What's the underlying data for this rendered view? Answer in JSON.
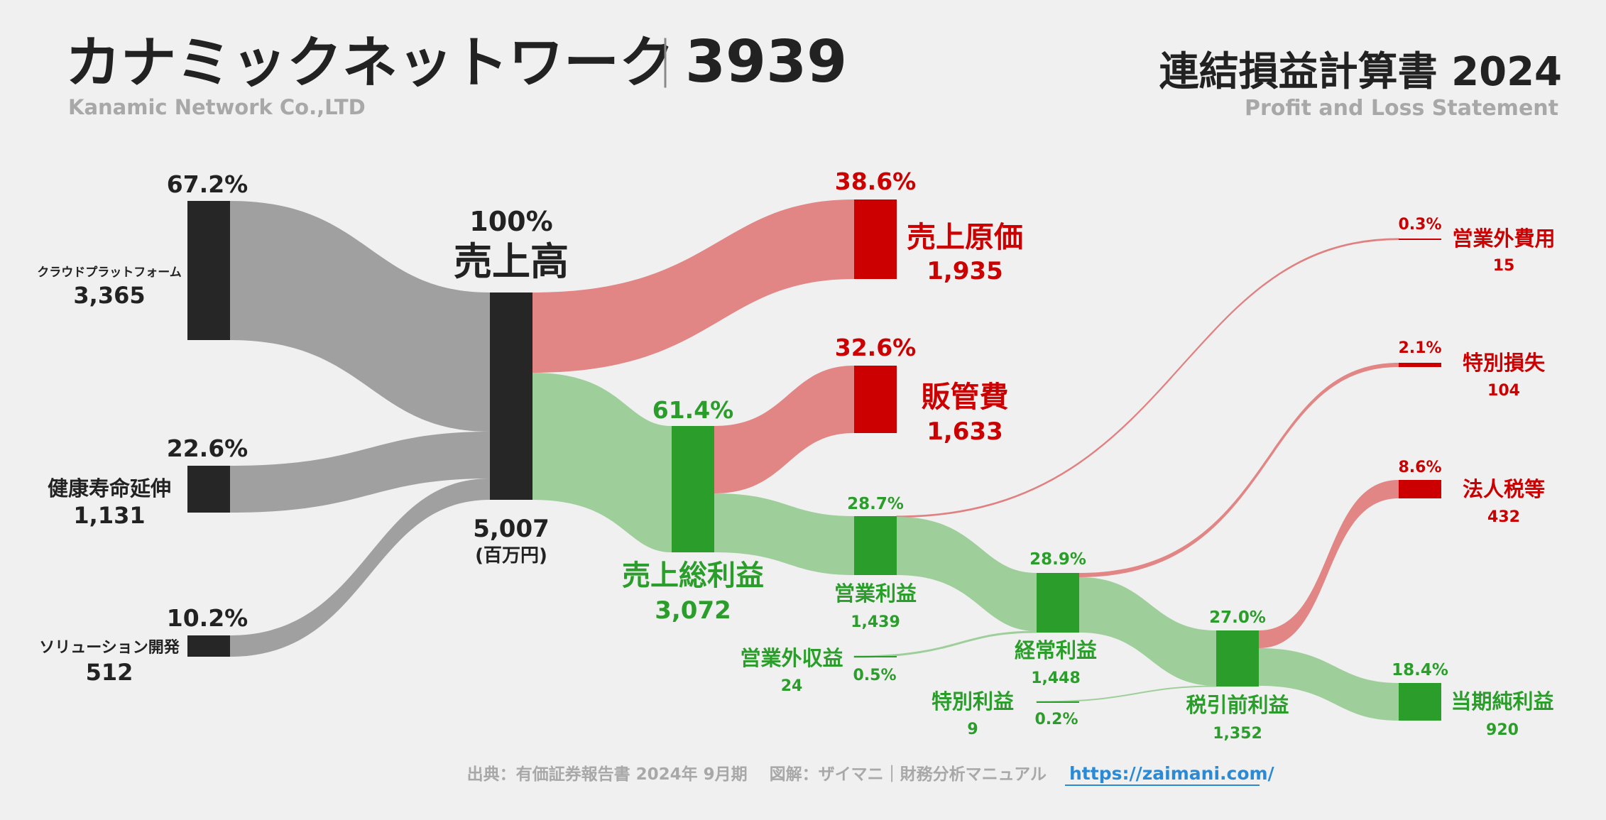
{
  "header": {
    "company_name": "カナミックネットワーク",
    "separator": "｜",
    "ticker": "3939",
    "company_en": "Kanamic Network Co.,LTD",
    "statement_title": "連結損益計算書 2024",
    "statement_en": "Profit and Loss Statement"
  },
  "footer": {
    "source": "出典：有価証券報告書 2024年 9月期　 図解：ザイマニ｜財務分析マニュアル",
    "url": "https://zaimani.com/"
  },
  "colors": {
    "background": "#f0f0f0",
    "node_dark": "#262626",
    "flow_grey": "#a0a0a0",
    "cost_red": "#cc0000",
    "cost_flow": "#e28585",
    "profit_green": "#2a9d2a",
    "profit_flow": "#9ecf9a",
    "link_blue": "#2b8ad6"
  },
  "chart_data": {
    "type": "sankey",
    "unit": "(百万円)",
    "nodes": [
      {
        "id": "cloud",
        "name": "クラウドプラットフォーム",
        "value": "3,365",
        "pct": "67.2%",
        "kind": "segment"
      },
      {
        "id": "health",
        "name": "健康寿命延伸",
        "value": "1,131",
        "pct": "22.6%",
        "kind": "segment"
      },
      {
        "id": "solution",
        "name": "ソリューション開発",
        "value": "512",
        "pct": "10.2%",
        "kind": "segment"
      },
      {
        "id": "revenue",
        "name": "売上高",
        "value": "5,007",
        "pct": "100%",
        "kind": "revenue"
      },
      {
        "id": "cogs",
        "name": "売上原価",
        "value": "1,935",
        "pct": "38.6%",
        "kind": "cost"
      },
      {
        "id": "gross",
        "name": "売上総利益",
        "value": "3,072",
        "pct": "61.4%",
        "kind": "profit"
      },
      {
        "id": "sga",
        "name": "販管費",
        "value": "1,633",
        "pct": "32.6%",
        "kind": "cost"
      },
      {
        "id": "op",
        "name": "営業利益",
        "value": "1,439",
        "pct": "28.7%",
        "kind": "profit"
      },
      {
        "id": "nonop_inc",
        "name": "営業外収益",
        "value": "24",
        "pct": "0.5%",
        "kind": "profit"
      },
      {
        "id": "nonop_exp",
        "name": "営業外費用",
        "value": "15",
        "pct": "0.3%",
        "kind": "cost"
      },
      {
        "id": "ordinary",
        "name": "経常利益",
        "value": "1,448",
        "pct": "28.9%",
        "kind": "profit"
      },
      {
        "id": "ext_gain",
        "name": "特別利益",
        "value": "9",
        "pct": "0.2%",
        "kind": "profit"
      },
      {
        "id": "ext_loss",
        "name": "特別損失",
        "value": "104",
        "pct": "2.1%",
        "kind": "cost"
      },
      {
        "id": "pretax",
        "name": "税引前利益",
        "value": "1,352",
        "pct": "27.0%",
        "kind": "profit"
      },
      {
        "id": "tax",
        "name": "法人税等",
        "value": "432",
        "pct": "8.6%",
        "kind": "cost"
      },
      {
        "id": "net",
        "name": "当期純利益",
        "value": "920",
        "pct": "18.4%",
        "kind": "profit"
      }
    ],
    "links": [
      {
        "source": "cloud",
        "target": "revenue",
        "value": 3365
      },
      {
        "source": "health",
        "target": "revenue",
        "value": 1131
      },
      {
        "source": "solution",
        "target": "revenue",
        "value": 512
      },
      {
        "source": "revenue",
        "target": "cogs",
        "value": 1935
      },
      {
        "source": "revenue",
        "target": "gross",
        "value": 3072
      },
      {
        "source": "gross",
        "target": "sga",
        "value": 1633
      },
      {
        "source": "gross",
        "target": "op",
        "value": 1439
      },
      {
        "source": "op",
        "target": "nonop_exp",
        "value": 15
      },
      {
        "source": "op",
        "target": "ordinary",
        "value": 1424
      },
      {
        "source": "nonop_inc",
        "target": "ordinary",
        "value": 24
      },
      {
        "source": "ordinary",
        "target": "ext_loss",
        "value": 104
      },
      {
        "source": "ordinary",
        "target": "pretax",
        "value": 1344
      },
      {
        "source": "ext_gain",
        "target": "pretax",
        "value": 9
      },
      {
        "source": "pretax",
        "target": "tax",
        "value": 432
      },
      {
        "source": "pretax",
        "target": "net",
        "value": 920
      }
    ]
  }
}
